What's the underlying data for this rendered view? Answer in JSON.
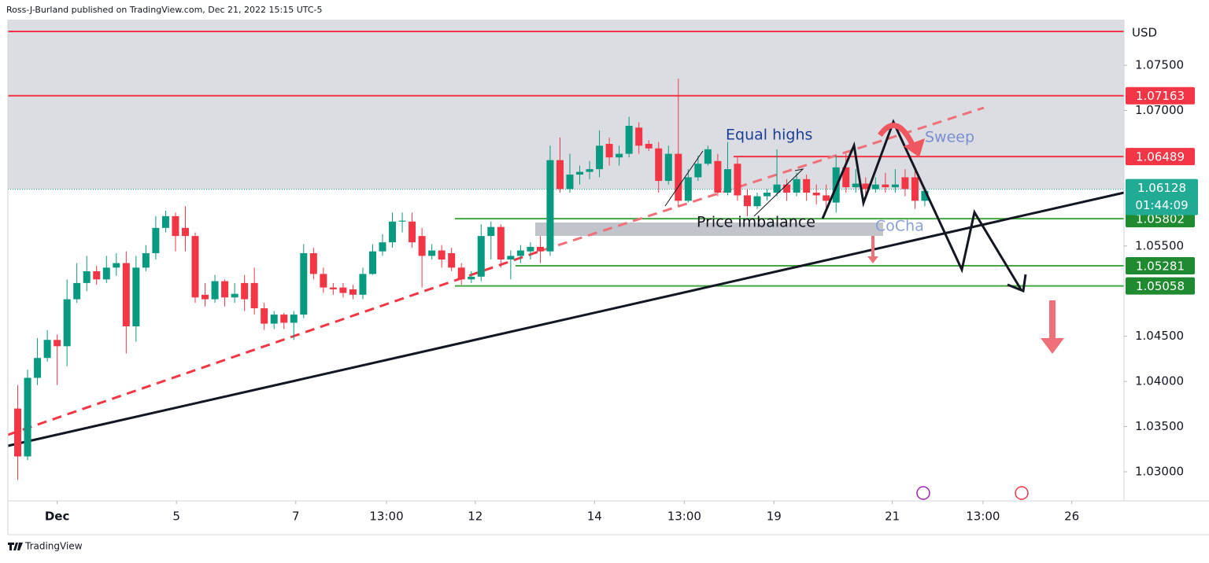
{
  "header": "Ross-J-Burland published on TradingView.com, Dec 21, 2022 15:15 UTC-5",
  "footer": "TradingView",
  "chart_data": {
    "type": "candlestick",
    "currency": "USD",
    "up_color": "#089981",
    "down_color": "#f23645",
    "ylim": [
      1.02678,
      1.08005
    ],
    "yticks": [
      {
        "value": 1.03,
        "label": "1.03000"
      },
      {
        "value": 1.035,
        "label": "1.03500"
      },
      {
        "value": 1.04,
        "label": "1.04000"
      },
      {
        "value": 1.045,
        "label": "1.04500"
      },
      {
        "value": 1.055,
        "label": "1.05500"
      },
      {
        "value": 1.07,
        "label": "1.07000"
      },
      {
        "value": 1.075,
        "label": "1.07500"
      }
    ],
    "xlim": [
      -1,
      112.2
    ],
    "xticks": [
      {
        "value": 4,
        "label": "Dec"
      },
      {
        "value": 16.1,
        "label": "5"
      },
      {
        "value": 28.2,
        "label": "7"
      },
      {
        "value": 37.4,
        "label": "13:00"
      },
      {
        "value": 46.4,
        "label": "12"
      },
      {
        "value": 58.5,
        "label": "14"
      },
      {
        "value": 67.6,
        "label": "13:00"
      },
      {
        "value": 76.7,
        "label": "19"
      },
      {
        "value": 88.7,
        "label": "21"
      },
      {
        "value": 97.9,
        "label": "13:00"
      },
      {
        "value": 106.9,
        "label": "26"
      }
    ],
    "candles": [
      [
        1.037,
        1.0396,
        1.0291,
        1.0317
      ],
      [
        1.0317,
        1.0413,
        1.0313,
        1.0404
      ],
      [
        1.0404,
        1.0448,
        1.0396,
        1.0426
      ],
      [
        1.0426,
        1.0457,
        1.0422,
        1.0446
      ],
      [
        1.0446,
        1.0452,
        1.0396,
        1.0439
      ],
      [
        1.0439,
        1.0513,
        1.0417,
        1.0491
      ],
      [
        1.0491,
        1.0531,
        1.0487,
        1.0509
      ],
      [
        1.0509,
        1.0539,
        1.05,
        1.0522
      ],
      [
        1.0522,
        1.0528,
        1.0507,
        1.0513
      ],
      [
        1.0513,
        1.0539,
        1.0509,
        1.0526
      ],
      [
        1.0526,
        1.0542,
        1.0517,
        1.0531
      ],
      [
        1.0531,
        1.0544,
        1.0431,
        1.0461
      ],
      [
        1.0461,
        1.0539,
        1.0444,
        1.0526
      ],
      [
        1.0526,
        1.0551,
        1.0522,
        1.0542
      ],
      [
        1.0542,
        1.0583,
        1.0535,
        1.057
      ],
      [
        1.057,
        1.0589,
        1.0565,
        1.0583
      ],
      [
        1.0583,
        1.0587,
        1.0544,
        1.0561
      ],
      [
        1.057,
        1.0594,
        1.0544,
        1.0561
      ],
      [
        1.0561,
        1.0565,
        1.0487,
        1.0493
      ],
      [
        1.0496,
        1.0509,
        1.0483,
        1.0491
      ],
      [
        1.0491,
        1.0518,
        1.0487,
        1.0511
      ],
      [
        1.0511,
        1.0513,
        1.0483,
        1.0493
      ],
      [
        1.0493,
        1.0509,
        1.0487,
        1.0497
      ],
      [
        1.0509,
        1.0518,
        1.0478,
        1.0491
      ],
      [
        1.0509,
        1.0526,
        1.0474,
        1.0481
      ],
      [
        1.0481,
        1.0487,
        1.0457,
        1.0464
      ],
      [
        1.0464,
        1.0478,
        1.0458,
        1.0474
      ],
      [
        1.0474,
        1.0476,
        1.0458,
        1.0465
      ],
      [
        1.0465,
        1.0478,
        1.0446,
        1.0474
      ],
      [
        1.0474,
        1.0552,
        1.047,
        1.0542
      ],
      [
        1.0542,
        1.0548,
        1.0513,
        1.0519
      ],
      [
        1.0519,
        1.0526,
        1.0498,
        1.0504
      ],
      [
        1.0504,
        1.0509,
        1.0496,
        1.0502
      ],
      [
        1.0504,
        1.0509,
        1.0493,
        1.0498
      ],
      [
        1.0502,
        1.0507,
        1.0491,
        1.0496
      ],
      [
        1.0496,
        1.0526,
        1.0491,
        1.0519
      ],
      [
        1.0519,
        1.0552,
        1.0518,
        1.0544
      ],
      [
        1.0544,
        1.0563,
        1.0539,
        1.0554
      ],
      [
        1.0554,
        1.0587,
        1.0548,
        1.0577
      ],
      [
        1.0577,
        1.0587,
        1.0565,
        1.0578
      ],
      [
        1.0577,
        1.0587,
        1.0548,
        1.0554
      ],
      [
        1.0561,
        1.057,
        1.0504,
        1.0539
      ],
      [
        1.0539,
        1.0552,
        1.0535,
        1.0545
      ],
      [
        1.0545,
        1.0551,
        1.0526,
        1.0535
      ],
      [
        1.0542,
        1.0548,
        1.0522,
        1.0526
      ],
      [
        1.0526,
        1.0531,
        1.0507,
        1.0513
      ],
      [
        1.0513,
        1.0522,
        1.0509,
        1.0516
      ],
      [
        1.0516,
        1.0574,
        1.0511,
        1.0561
      ],
      [
        1.0561,
        1.0577,
        1.0535,
        1.0571
      ],
      [
        1.0571,
        1.0574,
        1.0526,
        1.0535
      ],
      [
        1.0535,
        1.0545,
        1.0513,
        1.0539
      ],
      [
        1.0539,
        1.0551,
        1.0531,
        1.0545
      ],
      [
        1.0544,
        1.0554,
        1.0535,
        1.0549
      ],
      [
        1.0549,
        1.0561,
        1.0531,
        1.0544
      ],
      [
        1.0544,
        1.0661,
        1.0539,
        1.0645
      ],
      [
        1.0645,
        1.067,
        1.0609,
        1.0613
      ],
      [
        1.0613,
        1.0652,
        1.0609,
        1.0629
      ],
      [
        1.0629,
        1.0639,
        1.0618,
        1.0632
      ],
      [
        1.0632,
        1.0644,
        1.0624,
        1.0635
      ],
      [
        1.0635,
        1.0678,
        1.0626,
        1.0661
      ],
      [
        1.0663,
        1.067,
        1.0639,
        1.0648
      ],
      [
        1.0648,
        1.0661,
        1.0639,
        1.0652
      ],
      [
        1.0652,
        1.0693,
        1.0648,
        1.0683
      ],
      [
        1.0681,
        1.0687,
        1.0652,
        1.0661
      ],
      [
        1.0663,
        1.0667,
        1.0655,
        1.0658
      ],
      [
        1.0658,
        1.0665,
        1.0609,
        1.0622
      ],
      [
        1.0622,
        1.0661,
        1.0618,
        1.0652
      ],
      [
        1.0652,
        1.0735,
        1.0594,
        1.06
      ],
      [
        1.06,
        1.0635,
        1.0598,
        1.0626
      ],
      [
        1.0626,
        1.065,
        1.0622,
        1.0641
      ],
      [
        1.0641,
        1.0661,
        1.0639,
        1.0657
      ],
      [
        1.0644,
        1.0652,
        1.0605,
        1.0609
      ],
      [
        1.0609,
        1.0665,
        1.0606,
        1.0635
      ],
      [
        1.0641,
        1.0648,
        1.06,
        1.0606
      ],
      [
        1.0606,
        1.0613,
        1.0583,
        1.0594
      ],
      [
        1.0594,
        1.0609,
        1.0591,
        1.0605
      ],
      [
        1.0605,
        1.0613,
        1.06,
        1.0609
      ],
      [
        1.0609,
        1.0657,
        1.0605,
        1.0618
      ],
      [
        1.0618,
        1.0624,
        1.06,
        1.0609
      ],
      [
        1.0609,
        1.0631,
        1.0605,
        1.0624
      ],
      [
        1.0624,
        1.0629,
        1.06,
        1.0609
      ],
      [
        1.0609,
        1.0618,
        1.0596,
        1.0606
      ],
      [
        1.0606,
        1.0618,
        1.0589,
        1.06
      ],
      [
        1.0598,
        1.065,
        1.0587,
        1.0637
      ],
      [
        1.0637,
        1.0652,
        1.0609,
        1.0615
      ],
      [
        1.0615,
        1.0635,
        1.0609,
        1.0619
      ],
      [
        1.0619,
        1.0626,
        1.0605,
        1.0613
      ],
      [
        1.0613,
        1.0626,
        1.0609,
        1.0618
      ],
      [
        1.0618,
        1.0631,
        1.0609,
        1.0615
      ],
      [
        1.0615,
        1.0635,
        1.0609,
        1.0618
      ],
      [
        1.0626,
        1.0635,
        1.0605,
        1.0613
      ],
      [
        1.0626,
        1.0635,
        1.0591,
        1.06
      ],
      [
        1.06,
        1.0615,
        1.0594,
        1.0611
      ]
    ],
    "levels": [
      {
        "value": 1.07163,
        "color": "#f23645",
        "box_color": "#f23645"
      },
      {
        "value": 1.06489,
        "color": "#f23645",
        "box_color": "#f23645"
      },
      {
        "value": 1.05802,
        "color": "#43a843",
        "box_color": "#1f8a2f"
      },
      {
        "value": 1.05281,
        "color": "#43a843",
        "box_color": "#1f8a2f"
      },
      {
        "value": 1.05058,
        "color": "#43a843",
        "box_color": "#1f8a2f"
      }
    ],
    "last_price": 1.06128,
    "countdown": "01:44:09",
    "last_color": "#22ab94",
    "annotations": [
      "Equal highs",
      "Sweep",
      "Price imbalance",
      "CoCha"
    ]
  }
}
